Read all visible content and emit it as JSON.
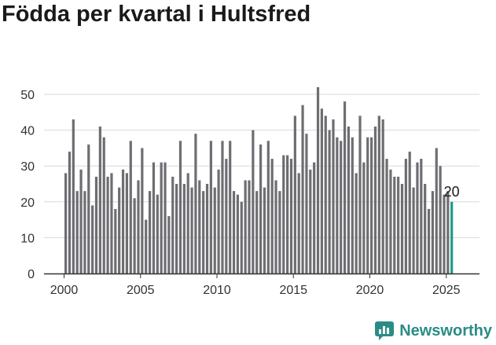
{
  "colors": {
    "bar": "#6e6d72",
    "highlight": "#1f9a8c",
    "brand": "#2a8c86",
    "grid": "#d8d8d8",
    "axis": "#333333"
  },
  "chart_data": {
    "type": "bar",
    "title": "Födda per kvartal i Hultsfred",
    "xlabel": "",
    "ylabel": "",
    "ylim": [
      0,
      55
    ],
    "yticks": [
      0,
      10,
      20,
      30,
      40,
      50
    ],
    "xticks": [
      "2000",
      "2005",
      "2010",
      "2015",
      "2020",
      "2025"
    ],
    "grid": true,
    "start": "2000 Q1",
    "end": "2025 Q2",
    "highlight_last": true,
    "last_label": "20",
    "values": [
      28,
      34,
      43,
      23,
      29,
      23,
      36,
      19,
      27,
      41,
      38,
      27,
      28,
      18,
      24,
      29,
      28,
      37,
      21,
      26,
      35,
      15,
      23,
      31,
      22,
      31,
      31,
      16,
      27,
      25,
      37,
      25,
      28,
      24,
      39,
      26,
      23,
      25,
      37,
      24,
      29,
      37,
      32,
      37,
      23,
      22,
      20,
      26,
      26,
      40,
      23,
      36,
      24,
      37,
      32,
      26,
      23,
      33,
      33,
      32,
      44,
      28,
      47,
      39,
      29,
      31,
      52,
      46,
      44,
      40,
      43,
      38,
      37,
      48,
      41,
      38,
      28,
      44,
      31,
      38,
      38,
      41,
      44,
      43,
      32,
      29,
      27,
      27,
      25,
      32,
      34,
      24,
      31,
      32,
      25,
      18,
      23,
      35,
      30,
      22,
      23,
      20
    ]
  },
  "brand": {
    "name": "Newsworthy"
  }
}
